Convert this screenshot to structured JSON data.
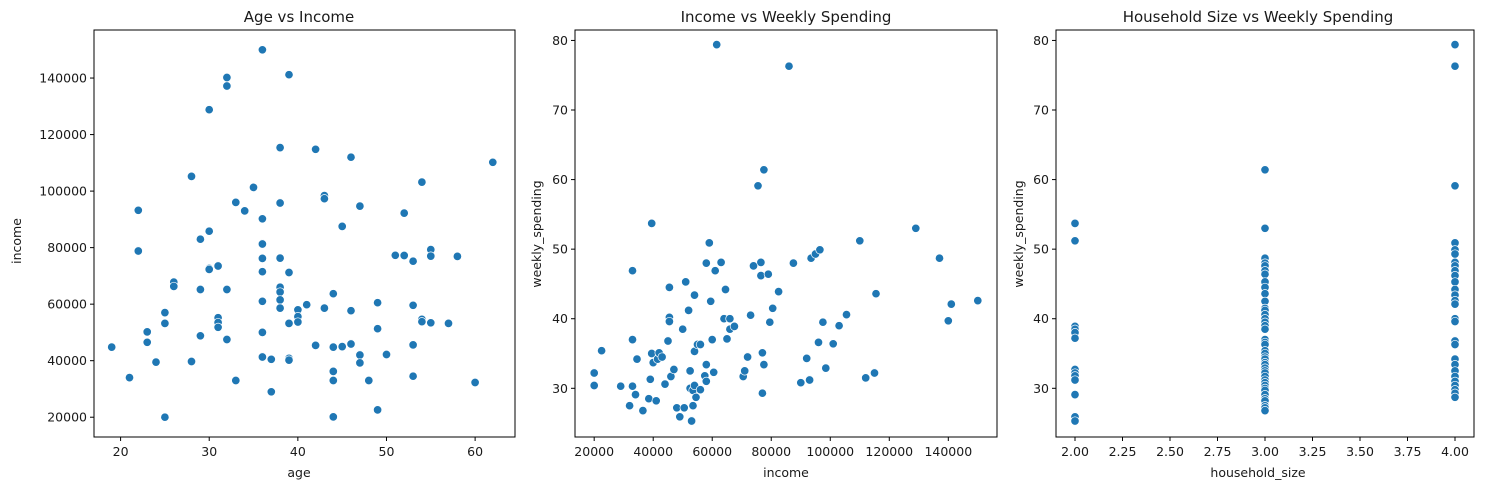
{
  "chart_data": [
    {
      "type": "scatter",
      "title": "Age vs Income",
      "xlabel": "age",
      "ylabel": "income",
      "xlim": [
        17,
        64.5
      ],
      "ylim": [
        13000,
        157000
      ],
      "xticks": [
        20,
        30,
        40,
        50,
        60
      ],
      "xtick_labels": [
        "20",
        "30",
        "40",
        "50",
        "60"
      ],
      "yticks": [
        20000,
        40000,
        60000,
        80000,
        100000,
        120000,
        140000
      ],
      "ytick_labels": [
        "20000",
        "40000",
        "60000",
        "80000",
        "100000",
        "120000",
        "140000"
      ],
      "grid": false,
      "color": "#1f77b4",
      "points": [
        [
          19,
          44800
        ],
        [
          21,
          34000
        ],
        [
          22,
          93200
        ],
        [
          22,
          78800
        ],
        [
          23,
          50200
        ],
        [
          23,
          46500
        ],
        [
          24,
          39500
        ],
        [
          25,
          57000
        ],
        [
          25,
          53200
        ],
        [
          25,
          20000
        ],
        [
          26,
          67800
        ],
        [
          26,
          66300
        ],
        [
          28,
          105200
        ],
        [
          28,
          39700
        ],
        [
          29,
          65200
        ],
        [
          29,
          48800
        ],
        [
          29,
          83000
        ],
        [
          30,
          128800
        ],
        [
          30,
          85800
        ],
        [
          30,
          72600
        ],
        [
          30,
          72300
        ],
        [
          31,
          73500
        ],
        [
          31,
          55200
        ],
        [
          31,
          53500
        ],
        [
          31,
          51800
        ],
        [
          32,
          140200
        ],
        [
          32,
          137200
        ],
        [
          32,
          65200
        ],
        [
          32,
          47500
        ],
        [
          33,
          96000
        ],
        [
          33,
          33000
        ],
        [
          34,
          93000
        ],
        [
          35,
          101300
        ],
        [
          36,
          150000
        ],
        [
          36,
          90200
        ],
        [
          36,
          81300
        ],
        [
          36,
          76200
        ],
        [
          36,
          71500
        ],
        [
          36,
          61000
        ],
        [
          36,
          50000
        ],
        [
          36,
          41300
        ],
        [
          37,
          40500
        ],
        [
          37,
          29000
        ],
        [
          38,
          115400
        ],
        [
          38,
          95800
        ],
        [
          38,
          76300
        ],
        [
          38,
          66000
        ],
        [
          38,
          64300
        ],
        [
          38,
          61500
        ],
        [
          38,
          58600
        ],
        [
          39,
          141200
        ],
        [
          39,
          71200
        ],
        [
          39,
          53200
        ],
        [
          39,
          40800
        ],
        [
          39,
          40200
        ],
        [
          40,
          58000
        ],
        [
          40,
          55600
        ],
        [
          40,
          53700
        ],
        [
          41,
          59800
        ],
        [
          42,
          114800
        ],
        [
          42,
          45400
        ],
        [
          43,
          98400
        ],
        [
          43,
          97300
        ],
        [
          43,
          58600
        ],
        [
          44,
          63700
        ],
        [
          44,
          44800
        ],
        [
          44,
          36200
        ],
        [
          44,
          33000
        ],
        [
          44,
          20100
        ],
        [
          45,
          87500
        ],
        [
          45,
          45000
        ],
        [
          46,
          112000
        ],
        [
          46,
          57700
        ],
        [
          46,
          45900
        ],
        [
          47,
          94700
        ],
        [
          47,
          42000
        ],
        [
          47,
          39200
        ],
        [
          48,
          33000
        ],
        [
          49,
          60500
        ],
        [
          49,
          51300
        ],
        [
          49,
          22600
        ],
        [
          50,
          42200
        ],
        [
          51,
          77300
        ],
        [
          52,
          92200
        ],
        [
          52,
          77200
        ],
        [
          53,
          75200
        ],
        [
          53,
          59600
        ],
        [
          53,
          45600
        ],
        [
          53,
          34500
        ],
        [
          54,
          103200
        ],
        [
          54,
          54600
        ],
        [
          54,
          53800
        ],
        [
          55,
          79300
        ],
        [
          55,
          77000
        ],
        [
          55,
          53400
        ],
        [
          57,
          53200
        ],
        [
          58,
          76900
        ],
        [
          60,
          32300
        ],
        [
          62,
          110200
        ]
      ]
    },
    {
      "type": "scatter",
      "title": "Income vs Weekly Spending",
      "xlabel": "income",
      "ylabel": "weekly_spending",
      "xlim": [
        13500,
        156500
      ],
      "ylim": [
        23.0,
        81.5
      ],
      "xticks": [
        20000,
        40000,
        60000,
        80000,
        100000,
        120000,
        140000
      ],
      "xtick_labels": [
        "20000",
        "40000",
        "60000",
        "80000",
        "100000",
        "120000",
        "140000"
      ],
      "yticks": [
        30,
        40,
        50,
        60,
        70,
        80
      ],
      "ytick_labels": [
        "30",
        "40",
        "50",
        "60",
        "70",
        "80"
      ],
      "grid": false,
      "color": "#1f77b4",
      "points": [
        [
          20000,
          32.2
        ],
        [
          20000,
          30.4
        ],
        [
          22500,
          35.4
        ],
        [
          29000,
          30.3
        ],
        [
          32000,
          27.5
        ],
        [
          33000,
          46.9
        ],
        [
          33000,
          37.0
        ],
        [
          33000,
          30.3
        ],
        [
          34000,
          29.1
        ],
        [
          34500,
          34.2
        ],
        [
          36500,
          26.8
        ],
        [
          38500,
          28.5
        ],
        [
          39000,
          31.3
        ],
        [
          39500,
          53.7
        ],
        [
          39500,
          35.0
        ],
        [
          40000,
          33.7
        ],
        [
          41000,
          28.2
        ],
        [
          41500,
          34.2
        ],
        [
          42000,
          35.1
        ],
        [
          43000,
          34.5
        ],
        [
          44000,
          30.6
        ],
        [
          45000,
          36.8
        ],
        [
          45500,
          44.5
        ],
        [
          45500,
          40.2
        ],
        [
          45500,
          39.6
        ],
        [
          46000,
          31.7
        ],
        [
          47000,
          32.7
        ],
        [
          48000,
          27.2
        ],
        [
          49000,
          25.9
        ],
        [
          50000,
          38.5
        ],
        [
          50500,
          27.2
        ],
        [
          51000,
          45.3
        ],
        [
          52000,
          41.2
        ],
        [
          52500,
          32.5
        ],
        [
          52500,
          30.0
        ],
        [
          53000,
          25.3
        ],
        [
          53500,
          29.7
        ],
        [
          53500,
          27.5
        ],
        [
          54000,
          43.4
        ],
        [
          54000,
          35.3
        ],
        [
          54000,
          30.4
        ],
        [
          54500,
          28.7
        ],
        [
          55000,
          36.3
        ],
        [
          56000,
          36.3
        ],
        [
          56000,
          29.8
        ],
        [
          57500,
          31.8
        ],
        [
          58000,
          48.0
        ],
        [
          58000,
          33.4
        ],
        [
          58000,
          31.0
        ],
        [
          59000,
          50.9
        ],
        [
          59500,
          42.5
        ],
        [
          60000,
          37.0
        ],
        [
          60500,
          32.3
        ],
        [
          61000,
          46.9
        ],
        [
          61500,
          79.4
        ],
        [
          63000,
          48.1
        ],
        [
          64000,
          40.0
        ],
        [
          64500,
          44.2
        ],
        [
          65000,
          37.1
        ],
        [
          66000,
          40.0
        ],
        [
          66000,
          38.5
        ],
        [
          67500,
          38.9
        ],
        [
          70500,
          31.7
        ],
        [
          71000,
          32.5
        ],
        [
          72000,
          34.5
        ],
        [
          73000,
          40.5
        ],
        [
          74000,
          47.6
        ],
        [
          75500,
          59.1
        ],
        [
          76500,
          48.1
        ],
        [
          76500,
          46.2
        ],
        [
          77000,
          35.1
        ],
        [
          77500,
          61.4
        ],
        [
          77000,
          29.3
        ],
        [
          77500,
          33.4
        ],
        [
          79000,
          46.4
        ],
        [
          79500,
          39.5
        ],
        [
          80500,
          41.5
        ],
        [
          82500,
          43.9
        ],
        [
          86000,
          76.3
        ],
        [
          87500,
          48.0
        ],
        [
          90000,
          30.8
        ],
        [
          92000,
          34.3
        ],
        [
          93000,
          31.2
        ],
        [
          93500,
          48.7
        ],
        [
          95000,
          49.3
        ],
        [
          96000,
          36.6
        ],
        [
          96500,
          49.9
        ],
        [
          97500,
          39.5
        ],
        [
          98500,
          32.9
        ],
        [
          101000,
          36.4
        ],
        [
          103000,
          39.0
        ],
        [
          105500,
          40.6
        ],
        [
          110000,
          51.2
        ],
        [
          112000,
          31.5
        ],
        [
          115000,
          32.2
        ],
        [
          115500,
          43.6
        ],
        [
          129000,
          53.0
        ],
        [
          137000,
          48.7
        ],
        [
          140000,
          39.7
        ],
        [
          141000,
          42.1
        ],
        [
          150000,
          42.6
        ]
      ]
    },
    {
      "type": "scatter",
      "title": "Household Size vs Weekly Spending",
      "xlabel": "household_size",
      "ylabel": "weekly_spending",
      "xlim": [
        1.9,
        4.1
      ],
      "ylim": [
        23.0,
        81.5
      ],
      "xticks": [
        2.0,
        2.25,
        2.5,
        2.75,
        3.0,
        3.25,
        3.5,
        3.75,
        4.0
      ],
      "xtick_labels": [
        "2.00",
        "2.25",
        "2.50",
        "2.75",
        "3.00",
        "3.25",
        "3.50",
        "3.75",
        "4.00"
      ],
      "yticks": [
        30,
        40,
        50,
        60,
        70,
        80
      ],
      "ytick_labels": [
        "30",
        "40",
        "50",
        "60",
        "70",
        "80"
      ],
      "grid": false,
      "color": "#1f77b4",
      "points": [
        [
          2,
          53.7
        ],
        [
          2,
          51.2
        ],
        [
          2,
          38.9
        ],
        [
          2,
          38.5
        ],
        [
          2,
          38.0
        ],
        [
          2,
          37.2
        ],
        [
          2,
          32.7
        ],
        [
          2,
          32.2
        ],
        [
          2,
          31.8
        ],
        [
          2,
          31.2
        ],
        [
          2,
          29.1
        ],
        [
          2,
          25.9
        ],
        [
          2,
          25.3
        ],
        [
          3,
          61.4
        ],
        [
          3,
          53.0
        ],
        [
          3,
          48.7
        ],
        [
          3,
          48.0
        ],
        [
          3,
          47.6
        ],
        [
          3,
          46.9
        ],
        [
          3,
          46.4
        ],
        [
          3,
          45.3
        ],
        [
          3,
          44.5
        ],
        [
          3,
          43.6
        ],
        [
          3,
          42.5
        ],
        [
          3,
          41.5
        ],
        [
          3,
          41.2
        ],
        [
          3,
          40.6
        ],
        [
          3,
          40.0
        ],
        [
          3,
          39.5
        ],
        [
          3,
          39.0
        ],
        [
          3,
          38.5
        ],
        [
          3,
          37.0
        ],
        [
          3,
          36.6
        ],
        [
          3,
          36.3
        ],
        [
          3,
          35.4
        ],
        [
          3,
          35.0
        ],
        [
          3,
          34.5
        ],
        [
          3,
          34.2
        ],
        [
          3,
          33.7
        ],
        [
          3,
          33.4
        ],
        [
          3,
          32.9
        ],
        [
          3,
          32.5
        ],
        [
          3,
          32.2
        ],
        [
          3,
          31.7
        ],
        [
          3,
          31.2
        ],
        [
          3,
          30.8
        ],
        [
          3,
          30.4
        ],
        [
          3,
          30.0
        ],
        [
          3,
          29.7
        ],
        [
          3,
          29.1
        ],
        [
          3,
          28.5
        ],
        [
          3,
          28.2
        ],
        [
          3,
          27.5
        ],
        [
          3,
          27.2
        ],
        [
          3,
          26.8
        ],
        [
          4,
          79.4
        ],
        [
          4,
          76.3
        ],
        [
          4,
          59.1
        ],
        [
          4,
          50.9
        ],
        [
          4,
          49.9
        ],
        [
          4,
          49.3
        ],
        [
          4,
          48.1
        ],
        [
          4,
          47.6
        ],
        [
          4,
          46.9
        ],
        [
          4,
          46.2
        ],
        [
          4,
          45.3
        ],
        [
          4,
          44.2
        ],
        [
          4,
          43.4
        ],
        [
          4,
          42.6
        ],
        [
          4,
          42.1
        ],
        [
          4,
          40.0
        ],
        [
          4,
          39.6
        ],
        [
          4,
          36.8
        ],
        [
          4,
          36.3
        ],
        [
          4,
          34.2
        ],
        [
          4,
          33.4
        ],
        [
          4,
          32.5
        ],
        [
          4,
          31.7
        ],
        [
          4,
          31.0
        ],
        [
          4,
          30.4
        ],
        [
          4,
          29.8
        ],
        [
          4,
          29.3
        ],
        [
          4,
          28.7
        ]
      ]
    }
  ]
}
